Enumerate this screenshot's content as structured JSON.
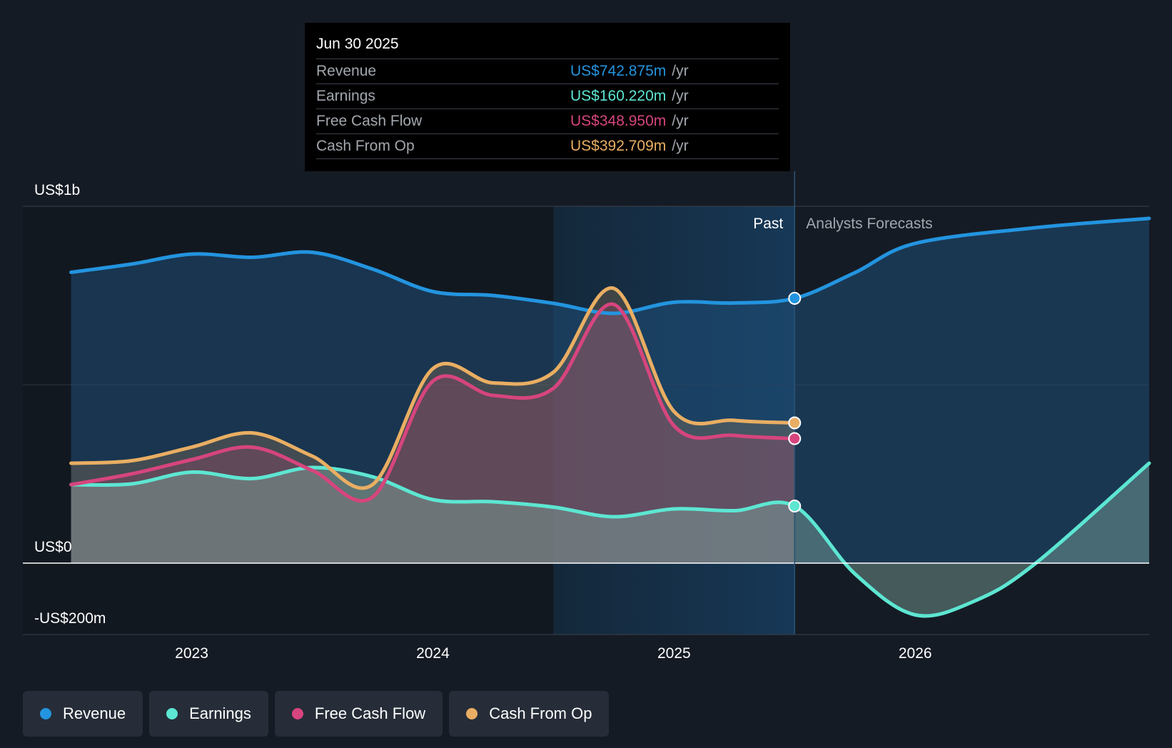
{
  "tooltip": {
    "date": "Jun 30 2025",
    "rows": [
      {
        "label": "Revenue",
        "value": "US$742.875m",
        "unit": "/yr",
        "color": "#2394df"
      },
      {
        "label": "Earnings",
        "value": "US$160.220m",
        "unit": "/yr",
        "color": "#5de6d2"
      },
      {
        "label": "Free Cash Flow",
        "value": "US$348.950m",
        "unit": "/yr",
        "color": "#d6457d"
      },
      {
        "label": "Cash From Op",
        "value": "US$392.709m",
        "unit": "/yr",
        "color": "#e9ae63"
      }
    ]
  },
  "chart_data": {
    "type": "area",
    "y_tick_labels": {
      "top": "US$1b",
      "zero": "US$0",
      "bottom": "-US$200m"
    },
    "ylim": [
      -200,
      1000
    ],
    "xlim": [
      2022.3,
      2026.97
    ],
    "x_tick_labels": [
      "2023",
      "2024",
      "2025",
      "2026"
    ],
    "x_ticks": [
      2023,
      2024,
      2025,
      2026
    ],
    "past_label": "Past",
    "forecast_label": "Analysts Forecasts",
    "past_end": 2025.5,
    "highlight_start": 2024.5,
    "series": [
      {
        "name": "Revenue",
        "color": "#2394df",
        "x": [
          2022.5,
          2022.75,
          2023.0,
          2023.25,
          2023.5,
          2023.75,
          2024.0,
          2024.25,
          2024.5,
          2024.75,
          2025.0,
          2025.25,
          2025.5,
          2025.75,
          2026.0,
          2026.5,
          2026.97
        ],
        "y": [
          815,
          838,
          866,
          857,
          871,
          824,
          761,
          750,
          728,
          700,
          731,
          729,
          742,
          814,
          896,
          940,
          966
        ]
      },
      {
        "name": "Earnings",
        "color": "#5de6d2",
        "x": [
          2022.5,
          2022.75,
          2023.0,
          2023.25,
          2023.5,
          2023.75,
          2024.0,
          2024.25,
          2024.5,
          2024.75,
          2025.0,
          2025.25,
          2025.5,
          2025.75,
          2026.0,
          2026.25,
          2026.5,
          2026.97
        ],
        "y": [
          220,
          222,
          255,
          237,
          268,
          242,
          178,
          172,
          157,
          130,
          152,
          147,
          160,
          -30,
          -145,
          -105,
          0,
          280
        ]
      },
      {
        "name": "Free Cash Flow",
        "color": "#d6457d",
        "x": [
          2022.5,
          2022.75,
          2023.0,
          2023.25,
          2023.5,
          2023.75,
          2024.0,
          2024.25,
          2024.5,
          2024.75,
          2025.0,
          2025.25,
          2025.5
        ],
        "y": [
          220,
          250,
          290,
          325,
          260,
          185,
          510,
          470,
          490,
          725,
          385,
          358,
          349
        ]
      },
      {
        "name": "Cash From Op",
        "color": "#e9ae63",
        "x": [
          2022.5,
          2022.75,
          2023.0,
          2023.25,
          2023.5,
          2023.75,
          2024.0,
          2024.25,
          2024.5,
          2024.75,
          2025.0,
          2025.25,
          2025.5
        ],
        "y": [
          280,
          287,
          325,
          365,
          300,
          220,
          545,
          505,
          535,
          770,
          425,
          400,
          393
        ]
      }
    ]
  },
  "legend": [
    {
      "label": "Revenue",
      "color": "#2394df"
    },
    {
      "label": "Earnings",
      "color": "#5de6d2"
    },
    {
      "label": "Free Cash Flow",
      "color": "#d6457d"
    },
    {
      "label": "Cash From Op",
      "color": "#e9ae63"
    }
  ]
}
